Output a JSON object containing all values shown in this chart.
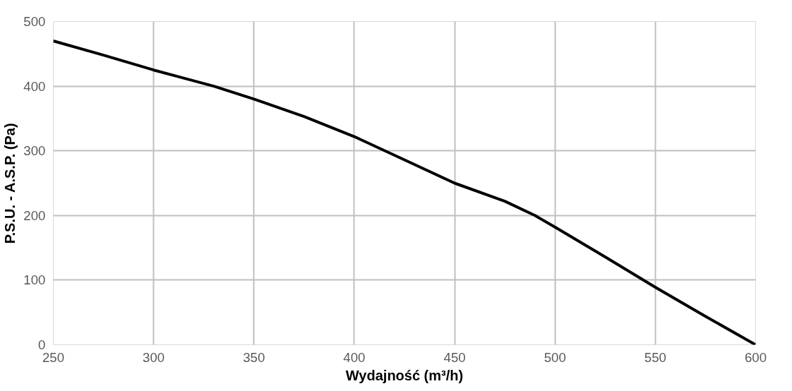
{
  "chart_data": {
    "type": "line",
    "xlabel": "Wydajność (m³/h)",
    "ylabel": "P.S.U. - A.S.P. (Pa)",
    "x": [
      250,
      275,
      300,
      330,
      350,
      375,
      400,
      425,
      450,
      475,
      490,
      500,
      525,
      550,
      575,
      600
    ],
    "series": [
      {
        "color": "#000000",
        "values": [
          470,
          448,
          425,
          400,
          380,
          353,
          322,
          286,
          250,
          222,
          200,
          182,
          136,
          89,
          44,
          0
        ]
      }
    ],
    "xlim": [
      250,
      600
    ],
    "xticks": [
      250,
      300,
      350,
      400,
      450,
      500,
      550,
      600
    ],
    "ylim": [
      0,
      500
    ],
    "yticks": [
      0,
      100,
      200,
      300,
      400,
      500
    ],
    "grid": true,
    "marker": "none",
    "line_style": "solid"
  }
}
